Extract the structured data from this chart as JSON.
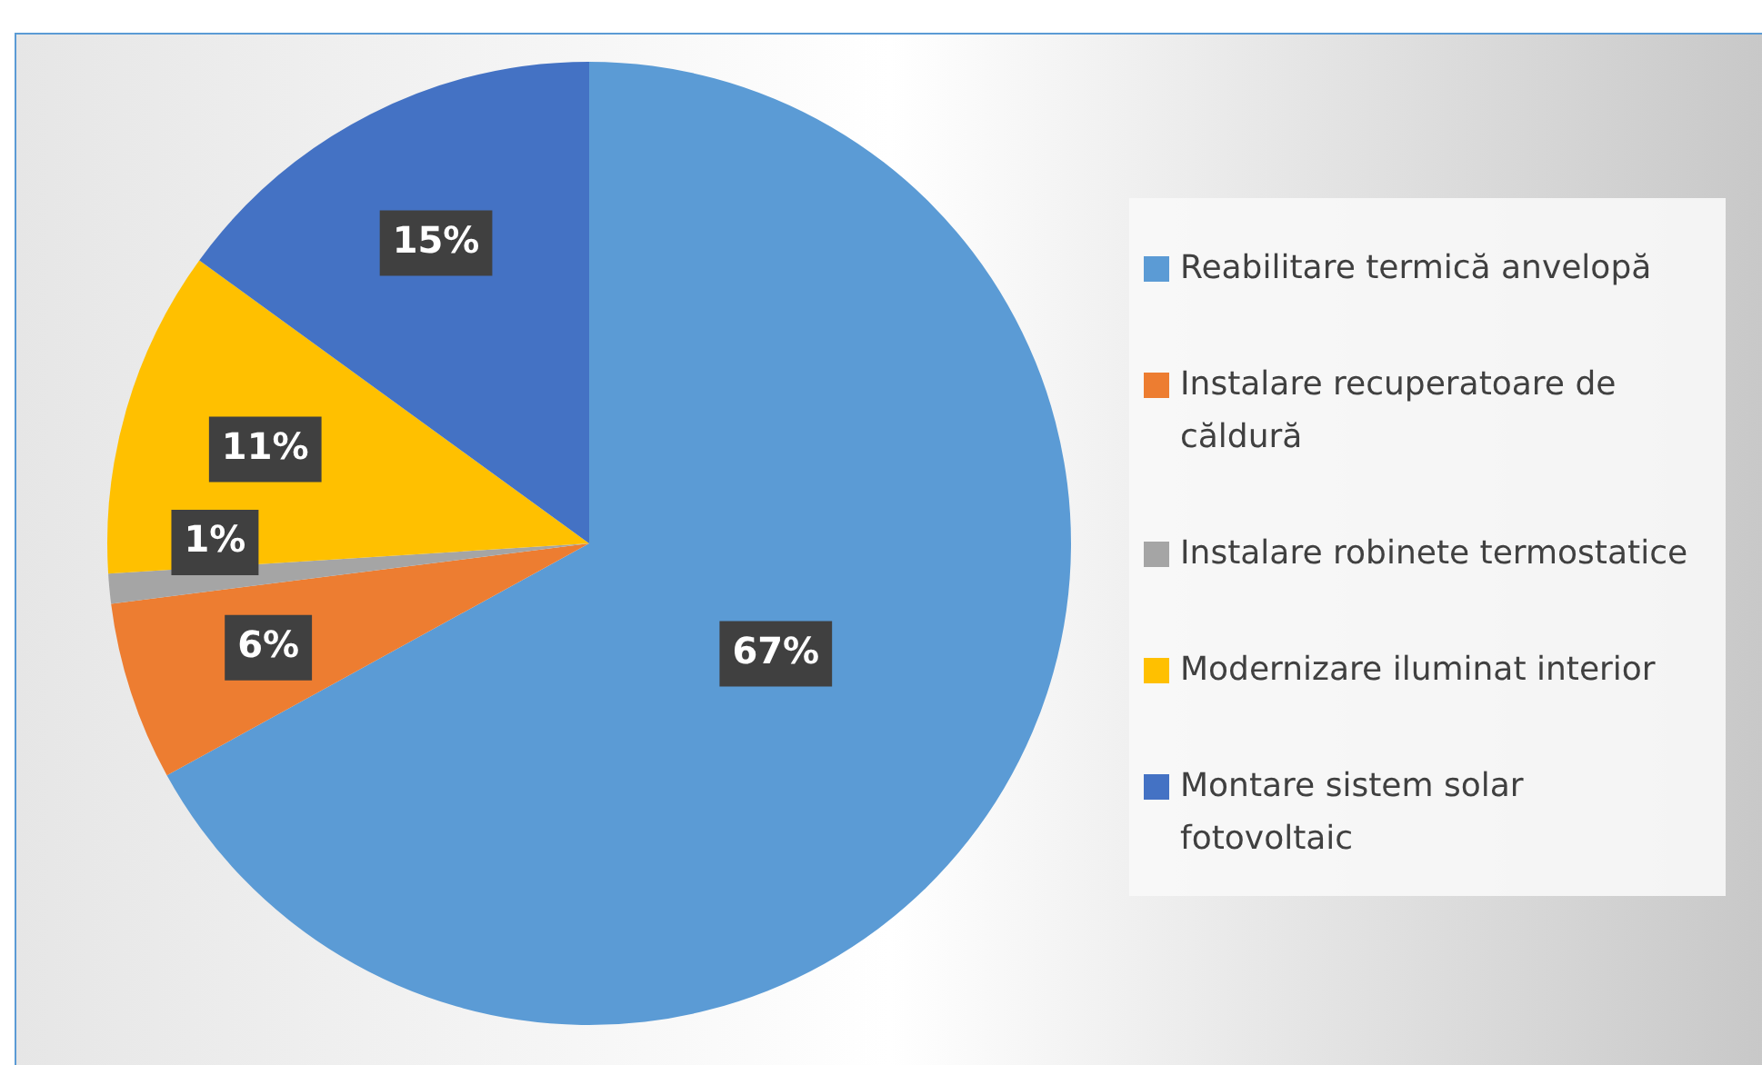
{
  "chart_data": {
    "type": "pie",
    "categories": [
      "Reabilitare termică anvelopă",
      "Instalare recuperatoare de căldură",
      "Instalare robinete termostatice",
      "Modernizare iluminat interior",
      "Montare sistem solar fotovoltaic"
    ],
    "values": [
      67,
      6,
      1,
      11,
      15
    ],
    "colors": [
      "#5b9bd5",
      "#ed7d31",
      "#a5a5a5",
      "#ffc000",
      "#4472c4"
    ],
    "value_labels": [
      "67%",
      "6%",
      "1%",
      "11%",
      "15%"
    ],
    "legend": "right"
  }
}
